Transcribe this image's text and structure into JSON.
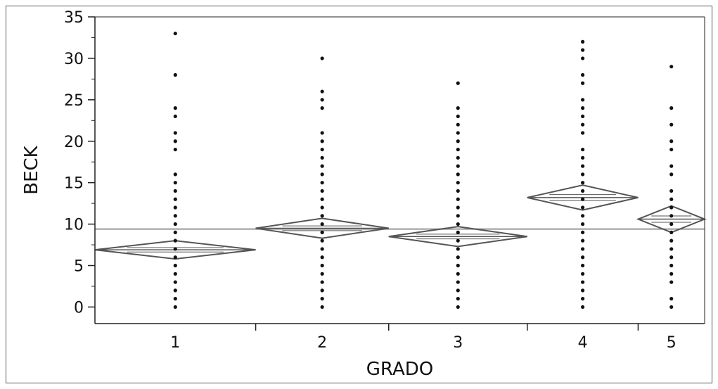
{
  "chart_data": {
    "type": "scatter",
    "subtype": "jmp-oneway-means-diamonds",
    "xlabel": "GRADO",
    "ylabel": "BECK",
    "ylim": [
      -2,
      35
    ],
    "yticks": [
      0,
      5,
      10,
      15,
      20,
      25,
      30,
      35
    ],
    "grid": false,
    "grand_mean": 9.4,
    "categories": [
      "1",
      "2",
      "3",
      "4",
      "5"
    ],
    "group_widths": [
      0.29,
      0.24,
      0.25,
      0.2,
      0.12
    ],
    "groups": [
      {
        "label": "1",
        "mean": 6.9,
        "ci": [
          5.8,
          8.0
        ],
        "values": [
          0,
          1,
          2,
          3,
          4,
          5,
          6,
          7,
          8,
          9,
          10,
          11,
          12,
          13,
          14,
          15,
          16,
          19,
          20,
          21,
          23,
          24,
          28,
          33
        ]
      },
      {
        "label": "2",
        "mean": 9.5,
        "ci": [
          8.3,
          10.7
        ],
        "values": [
          0,
          1,
          2,
          3,
          4,
          5,
          6,
          7,
          8,
          9,
          10,
          11,
          12,
          13,
          14,
          15,
          16,
          17,
          18,
          19,
          20,
          21,
          24,
          25,
          26,
          30
        ]
      },
      {
        "label": "3",
        "mean": 8.5,
        "ci": [
          7.3,
          9.7
        ],
        "values": [
          0,
          1,
          2,
          3,
          4,
          5,
          6,
          7,
          8,
          9,
          10,
          11,
          12,
          13,
          14,
          15,
          16,
          17,
          18,
          19,
          20,
          21,
          22,
          23,
          24,
          27
        ]
      },
      {
        "label": "4",
        "mean": 13.2,
        "ci": [
          11.7,
          14.7
        ],
        "values": [
          0,
          1,
          2,
          3,
          4,
          5,
          6,
          7,
          8,
          9,
          10,
          11,
          12,
          13,
          14,
          15,
          16,
          17,
          18,
          19,
          21,
          22,
          23,
          24,
          25,
          27,
          28,
          30,
          31,
          32
        ]
      },
      {
        "label": "5",
        "mean": 10.6,
        "ci": [
          9.0,
          12.2
        ],
        "values": [
          0,
          1,
          3,
          4,
          5,
          6,
          7,
          8,
          9,
          10,
          11,
          12,
          13,
          14,
          16,
          17,
          19,
          20,
          22,
          24,
          29
        ]
      }
    ]
  },
  "style": {
    "point_color": "#111111",
    "diamond_color": "#555555",
    "mean_line_color": "#999999",
    "axis_color": "#222222"
  }
}
